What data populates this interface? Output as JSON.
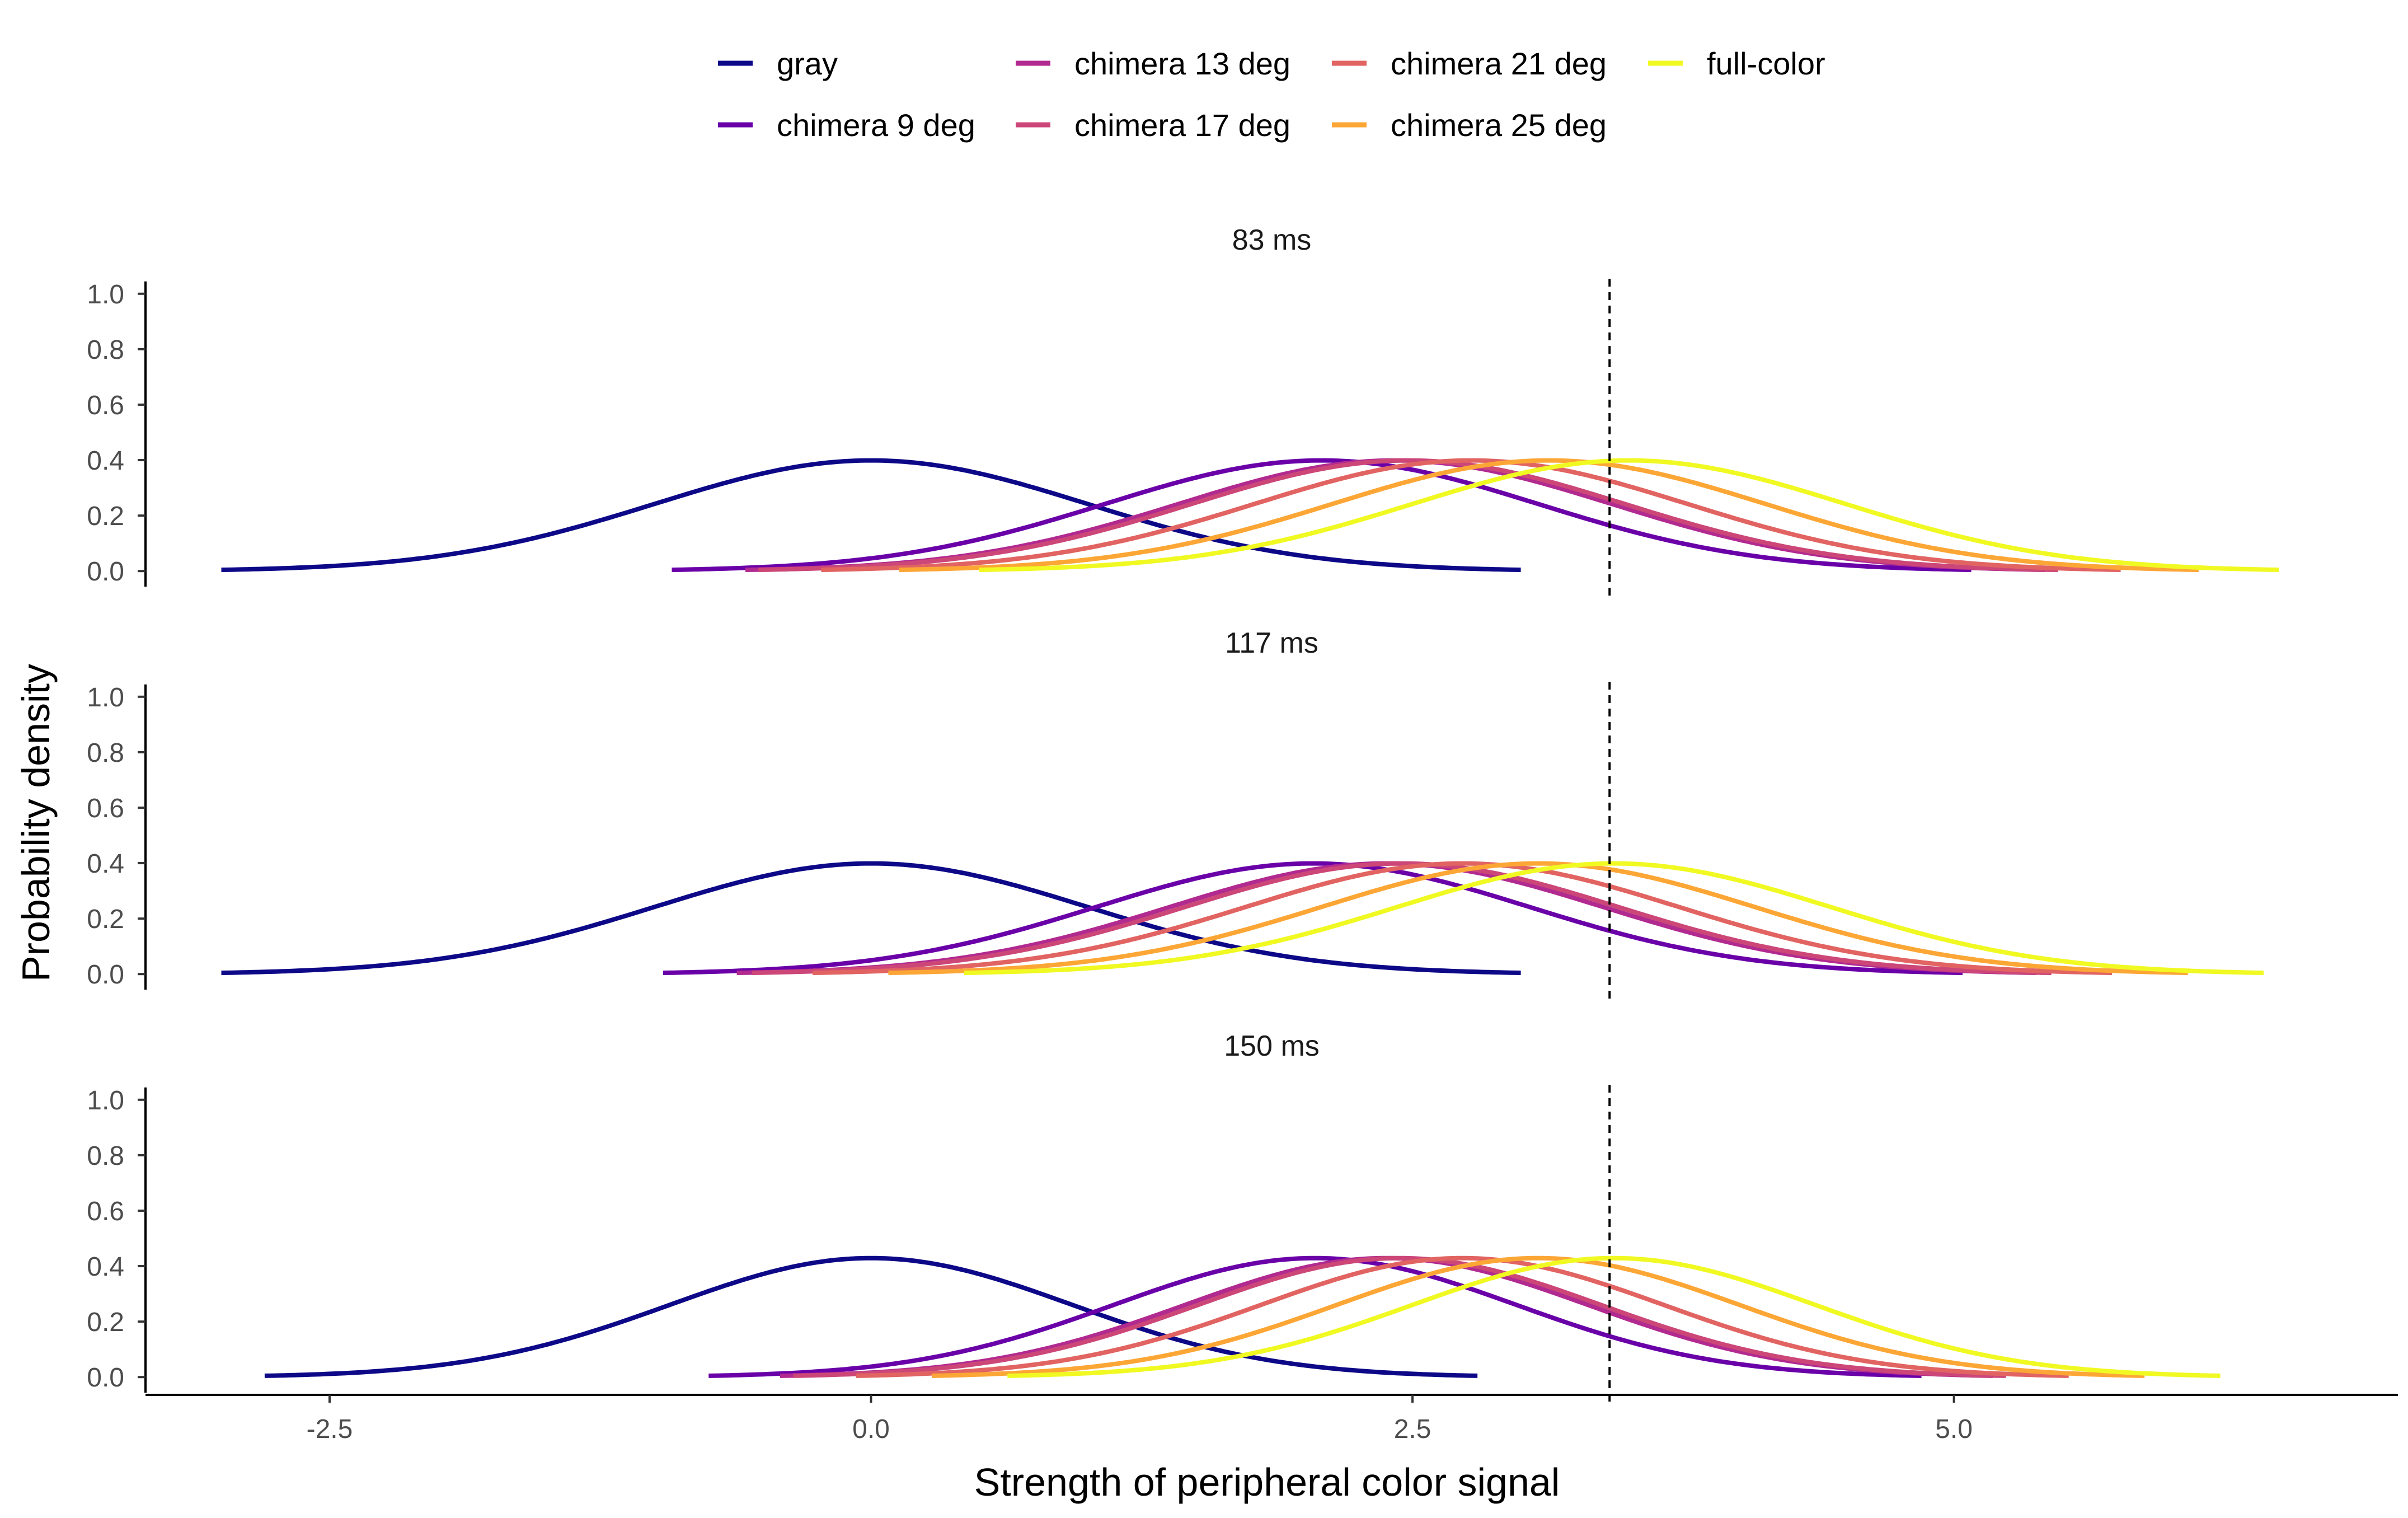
{
  "chart_data": {
    "type": "line",
    "xlabel": "Strength of peripheral color signal",
    "ylabel": "Probability density",
    "xlim": [
      -3.35,
      7.05
    ],
    "ylim": [
      -0.05,
      1.05
    ],
    "x_ticks": [
      -2.5,
      0.0,
      2.5,
      5.0
    ],
    "x_tick_labels": [
      "-2.5",
      "0.0",
      "2.5",
      "5.0"
    ],
    "y_ticks": [
      0.0,
      0.2,
      0.4,
      0.6,
      0.8,
      1.0
    ],
    "y_tick_labels": [
      "0.0",
      "0.2",
      "0.4",
      "0.6",
      "0.8",
      "1.0"
    ],
    "threshold_x": 3.41,
    "threshold_style": "dashed",
    "legend_position": "top",
    "grid": false,
    "series_styles": [
      {
        "name": "gray",
        "color": "#0D0887"
      },
      {
        "name": "chimera 9 deg",
        "color": "#6A00A8"
      },
      {
        "name": "chimera 13 deg",
        "color": "#B12A90"
      },
      {
        "name": "chimera 17 deg",
        "color": "#CC4778"
      },
      {
        "name": "chimera 21 deg",
        "color": "#E16462"
      },
      {
        "name": "chimera 25 deg",
        "color": "#FCA636"
      },
      {
        "name": "full-color",
        "color": "#F0F921"
      }
    ],
    "panels": [
      {
        "label": "83 ms",
        "sd": 1.0,
        "series": [
          {
            "name": "gray",
            "mean": 0.0,
            "x_range": [
              -3.0,
              3.0
            ]
          },
          {
            "name": "chimera 9 deg",
            "mean": 2.08,
            "x_range": [
              -0.92,
              5.08
            ]
          },
          {
            "name": "chimera 13 deg",
            "mean": 2.42,
            "x_range": [
              -0.58,
              5.42
            ]
          },
          {
            "name": "chimera 17 deg",
            "mean": 2.48,
            "x_range": [
              -0.52,
              5.48
            ]
          },
          {
            "name": "chimera 21 deg",
            "mean": 2.77,
            "x_range": [
              -0.23,
              5.77
            ]
          },
          {
            "name": "chimera 25 deg",
            "mean": 3.13,
            "x_range": [
              0.13,
              6.13
            ]
          },
          {
            "name": "full-color",
            "mean": 3.5,
            "x_range": [
              0.5,
              6.5
            ]
          }
        ]
      },
      {
        "label": "117 ms",
        "sd": 1.0,
        "series": [
          {
            "name": "gray",
            "mean": 0.0,
            "x_range": [
              -3.0,
              3.0
            ]
          },
          {
            "name": "chimera 9 deg",
            "mean": 2.04,
            "x_range": [
              -0.96,
              5.04
            ]
          },
          {
            "name": "chimera 13 deg",
            "mean": 2.38,
            "x_range": [
              -0.62,
              5.38
            ]
          },
          {
            "name": "chimera 17 deg",
            "mean": 2.45,
            "x_range": [
              -0.55,
              5.45
            ]
          },
          {
            "name": "chimera 21 deg",
            "mean": 2.73,
            "x_range": [
              -0.27,
              5.73
            ]
          },
          {
            "name": "chimera 25 deg",
            "mean": 3.08,
            "x_range": [
              0.08,
              6.08
            ]
          },
          {
            "name": "full-color",
            "mean": 3.43,
            "x_range": [
              0.43,
              6.43
            ]
          }
        ]
      },
      {
        "label": "150 ms",
        "sd": 0.93,
        "series": [
          {
            "name": "gray",
            "mean": 0.0,
            "x_range": [
              -2.8,
              2.8
            ]
          },
          {
            "name": "chimera 9 deg",
            "mean": 2.05,
            "x_range": [
              -0.75,
              4.85
            ]
          },
          {
            "name": "chimera 13 deg",
            "mean": 2.38,
            "x_range": [
              -0.42,
              5.18
            ]
          },
          {
            "name": "chimera 17 deg",
            "mean": 2.44,
            "x_range": [
              -0.36,
              5.24
            ]
          },
          {
            "name": "chimera 21 deg",
            "mean": 2.73,
            "x_range": [
              -0.07,
              5.53
            ]
          },
          {
            "name": "chimera 25 deg",
            "mean": 3.08,
            "x_range": [
              0.28,
              5.88
            ]
          },
          {
            "name": "full-color",
            "mean": 3.43,
            "x_range": [
              0.63,
              6.23
            ]
          }
        ]
      }
    ]
  }
}
